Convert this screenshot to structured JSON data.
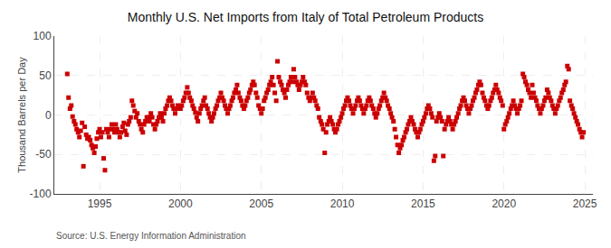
{
  "chart_data": {
    "type": "scatter",
    "title": "Monthly U.S. Net Imports from Italy of Total Petroleum Products",
    "ylabel": "Thousand Barrels per Day",
    "annotations": [
      "Source: U.S. Energy Information Administration"
    ],
    "color": "#cc0000",
    "marker": "square",
    "grid": true,
    "xlim": [
      1992.2,
      2025.5
    ],
    "ylim": [
      -100,
      100
    ],
    "xticks": [
      1995,
      2000,
      2005,
      2010,
      2015,
      2020,
      2025
    ],
    "yticks": [
      -100,
      -50,
      0,
      50,
      100
    ],
    "x": [
      1993.0,
      1993.08,
      1993.17,
      1993.25,
      1993.33,
      1993.42,
      1993.5,
      1993.58,
      1993.67,
      1993.75,
      1993.83,
      1993.92,
      1994.0,
      1994.08,
      1994.17,
      1994.25,
      1994.33,
      1994.42,
      1994.5,
      1994.58,
      1994.67,
      1994.75,
      1994.83,
      1994.92,
      1995.0,
      1995.08,
      1995.17,
      1995.25,
      1995.33,
      1995.42,
      1995.5,
      1995.58,
      1995.67,
      1995.75,
      1995.83,
      1995.92,
      1996.0,
      1996.08,
      1996.17,
      1996.25,
      1996.33,
      1996.42,
      1996.5,
      1996.58,
      1996.67,
      1996.75,
      1996.83,
      1996.92,
      1997.0,
      1997.08,
      1997.17,
      1997.25,
      1997.33,
      1997.42,
      1997.5,
      1997.58,
      1997.67,
      1997.75,
      1997.83,
      1997.92,
      1998.0,
      1998.08,
      1998.17,
      1998.25,
      1998.33,
      1998.42,
      1998.5,
      1998.58,
      1998.67,
      1998.75,
      1998.83,
      1998.92,
      1999.0,
      1999.08,
      1999.17,
      1999.25,
      1999.33,
      1999.42,
      1999.5,
      1999.58,
      1999.67,
      1999.75,
      1999.83,
      1999.92,
      2000.0,
      2000.08,
      2000.17,
      2000.25,
      2000.33,
      2000.42,
      2000.5,
      2000.58,
      2000.67,
      2000.75,
      2000.83,
      2000.92,
      2001.0,
      2001.08,
      2001.17,
      2001.25,
      2001.33,
      2001.42,
      2001.5,
      2001.58,
      2001.67,
      2001.75,
      2001.83,
      2001.92,
      2002.0,
      2002.08,
      2002.17,
      2002.25,
      2002.33,
      2002.42,
      2002.5,
      2002.58,
      2002.67,
      2002.75,
      2002.83,
      2002.92,
      2003.0,
      2003.08,
      2003.17,
      2003.25,
      2003.33,
      2003.42,
      2003.5,
      2003.58,
      2003.67,
      2003.75,
      2003.83,
      2003.92,
      2004.0,
      2004.08,
      2004.17,
      2004.25,
      2004.33,
      2004.42,
      2004.5,
      2004.58,
      2004.67,
      2004.75,
      2004.83,
      2004.92,
      2005.0,
      2005.08,
      2005.17,
      2005.25,
      2005.33,
      2005.42,
      2005.5,
      2005.58,
      2005.67,
      2005.75,
      2005.83,
      2005.92,
      2006.0,
      2006.08,
      2006.17,
      2006.25,
      2006.33,
      2006.42,
      2006.5,
      2006.58,
      2006.67,
      2006.75,
      2006.83,
      2006.92,
      2007.0,
      2007.08,
      2007.17,
      2007.25,
      2007.33,
      2007.42,
      2007.5,
      2007.58,
      2007.67,
      2007.75,
      2007.83,
      2007.92,
      2008.0,
      2008.08,
      2008.17,
      2008.25,
      2008.33,
      2008.42,
      2008.5,
      2008.58,
      2008.67,
      2008.75,
      2008.83,
      2008.92,
      2009.0,
      2009.08,
      2009.17,
      2009.25,
      2009.33,
      2009.42,
      2009.5,
      2009.58,
      2009.67,
      2009.75,
      2009.83,
      2009.92,
      2010.0,
      2010.08,
      2010.17,
      2010.25,
      2010.33,
      2010.42,
      2010.5,
      2010.58,
      2010.67,
      2010.75,
      2010.83,
      2010.92,
      2011.0,
      2011.08,
      2011.17,
      2011.25,
      2011.33,
      2011.42,
      2011.5,
      2011.58,
      2011.67,
      2011.75,
      2011.83,
      2011.92,
      2012.0,
      2012.08,
      2012.17,
      2012.25,
      2012.33,
      2012.42,
      2012.5,
      2012.58,
      2012.67,
      2012.75,
      2012.83,
      2012.92,
      2013.0,
      2013.08,
      2013.17,
      2013.25,
      2013.33,
      2013.42,
      2013.5,
      2013.58,
      2013.67,
      2013.75,
      2013.83,
      2013.92,
      2014.0,
      2014.08,
      2014.17,
      2014.25,
      2014.33,
      2014.42,
      2014.5,
      2014.58,
      2014.67,
      2014.75,
      2014.83,
      2014.92,
      2015.0,
      2015.08,
      2015.17,
      2015.25,
      2015.33,
      2015.42,
      2015.5,
      2015.58,
      2015.67,
      2015.75,
      2015.83,
      2015.92,
      2016.0,
      2016.08,
      2016.17,
      2016.25,
      2016.33,
      2016.42,
      2016.5,
      2016.58,
      2016.67,
      2016.75,
      2016.83,
      2016.92,
      2017.0,
      2017.08,
      2017.17,
      2017.25,
      2017.33,
      2017.42,
      2017.5,
      2017.58,
      2017.67,
      2017.75,
      2017.83,
      2017.92,
      2018.0,
      2018.08,
      2018.17,
      2018.25,
      2018.33,
      2018.42,
      2018.5,
      2018.58,
      2018.67,
      2018.75,
      2018.83,
      2018.92,
      2019.0,
      2019.08,
      2019.17,
      2019.25,
      2019.33,
      2019.42,
      2019.5,
      2019.58,
      2019.67,
      2019.75,
      2019.83,
      2019.92,
      2020.0,
      2020.08,
      2020.17,
      2020.25,
      2020.33,
      2020.42,
      2020.5,
      2020.58,
      2020.67,
      2020.75,
      2020.83,
      2020.92,
      2021.0,
      2021.08,
      2021.17,
      2021.25,
      2021.33,
      2021.42,
      2021.5,
      2021.58,
      2021.67,
      2021.75,
      2021.83,
      2021.92,
      2022.0,
      2022.08,
      2022.17,
      2022.25,
      2022.33,
      2022.42,
      2022.5,
      2022.58,
      2022.67,
      2022.75,
      2022.83,
      2022.92,
      2023.0,
      2023.08,
      2023.17,
      2023.25,
      2023.33,
      2023.42,
      2023.5,
      2023.58,
      2023.67,
      2023.75,
      2023.83,
      2023.92,
      2024.0,
      2024.08,
      2024.17,
      2024.25,
      2024.33,
      2024.42,
      2024.5,
      2024.58,
      2024.67,
      2024.75,
      2024.83,
      2024.92
    ],
    "values": [
      52,
      22,
      8,
      12,
      -2,
      -8,
      -12,
      -18,
      -22,
      -28,
      -20,
      -10,
      -65,
      -15,
      -25,
      -30,
      -28,
      -32,
      -38,
      -42,
      -48,
      -40,
      -30,
      -22,
      -18,
      -28,
      -22,
      -55,
      -70,
      -18,
      -22,
      -28,
      -18,
      -12,
      -18,
      -22,
      -12,
      -18,
      -22,
      -28,
      -22,
      -15,
      -10,
      -20,
      -25,
      -12,
      -8,
      -3,
      18,
      12,
      5,
      -3,
      2,
      -8,
      -12,
      -18,
      -22,
      -12,
      -8,
      -3,
      -3,
      -8,
      2,
      -3,
      -12,
      -18,
      -12,
      -8,
      -3,
      2,
      -3,
      -8,
      2,
      8,
      12,
      18,
      22,
      18,
      12,
      8,
      2,
      8,
      12,
      8,
      8,
      12,
      18,
      22,
      28,
      35,
      28,
      22,
      18,
      12,
      8,
      3,
      -3,
      -8,
      2,
      8,
      12,
      18,
      22,
      12,
      8,
      2,
      -3,
      -8,
      -3,
      2,
      8,
      12,
      18,
      22,
      28,
      22,
      18,
      12,
      8,
      2,
      8,
      12,
      18,
      22,
      28,
      32,
      38,
      28,
      22,
      18,
      12,
      8,
      12,
      18,
      22,
      28,
      32,
      38,
      42,
      38,
      28,
      22,
      12,
      8,
      2,
      8,
      18,
      22,
      28,
      32,
      38,
      42,
      48,
      38,
      28,
      18,
      68,
      48,
      42,
      38,
      32,
      28,
      22,
      32,
      38,
      42,
      48,
      42,
      58,
      48,
      42,
      38,
      32,
      38,
      42,
      48,
      42,
      38,
      28,
      22,
      18,
      22,
      28,
      22,
      18,
      12,
      8,
      -3,
      -8,
      -12,
      -18,
      -48,
      -22,
      -12,
      -8,
      -3,
      -8,
      -12,
      -18,
      -22,
      -18,
      -12,
      -8,
      -3,
      2,
      8,
      12,
      18,
      22,
      18,
      12,
      8,
      2,
      8,
      12,
      18,
      22,
      18,
      12,
      8,
      2,
      8,
      12,
      18,
      22,
      18,
      12,
      8,
      2,
      -3,
      2,
      8,
      12,
      18,
      22,
      28,
      22,
      18,
      12,
      8,
      2,
      -3,
      -8,
      -18,
      -28,
      -38,
      -48,
      -42,
      -38,
      -32,
      -28,
      -22,
      -18,
      -12,
      -8,
      -3,
      -8,
      -12,
      -18,
      -22,
      -28,
      -22,
      -18,
      -12,
      -8,
      -3,
      2,
      8,
      12,
      8,
      2,
      -3,
      -58,
      -52,
      -8,
      -3,
      2,
      -3,
      -8,
      -52,
      -18,
      -12,
      -8,
      -3,
      -8,
      -12,
      -18,
      -12,
      -8,
      -3,
      2,
      8,
      12,
      18,
      22,
      18,
      12,
      8,
      2,
      8,
      12,
      18,
      22,
      28,
      32,
      38,
      42,
      38,
      28,
      22,
      18,
      12,
      8,
      12,
      18,
      22,
      28,
      32,
      38,
      32,
      28,
      22,
      18,
      12,
      -18,
      -12,
      -8,
      -3,
      2,
      8,
      12,
      18,
      12,
      8,
      2,
      8,
      12,
      18,
      52,
      48,
      42,
      38,
      32,
      28,
      22,
      38,
      28,
      22,
      18,
      12,
      8,
      2,
      8,
      12,
      18,
      22,
      32,
      28,
      22,
      18,
      12,
      8,
      2,
      8,
      12,
      18,
      22,
      28,
      32,
      38,
      42,
      62,
      58,
      18,
      12,
      8,
      2,
      -3,
      -8,
      -12,
      -18,
      -22,
      -28,
      -22
    ]
  }
}
